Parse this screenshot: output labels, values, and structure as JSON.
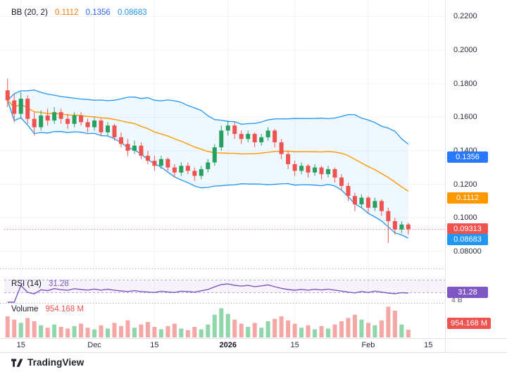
{
  "indicator_header": {
    "bb_label": "BB (20, 2)",
    "bb_mid": "0.1112",
    "bb_upper": "0.1356",
    "bb_lower": "0.08683"
  },
  "price_axis": {
    "labels": [
      "0.2200",
      "0.2000",
      "0.1800",
      "0.1600",
      "0.1400",
      "0.1200",
      "0.1000",
      "0.08000"
    ],
    "values": [
      0.22,
      0.2,
      0.18,
      0.16,
      0.14,
      0.12,
      0.1,
      0.08
    ]
  },
  "price_badges": [
    {
      "label": "0.1356",
      "value": 0.1356,
      "color": "#2979ff"
    },
    {
      "label": "0.1112",
      "value": 0.1112,
      "color": "#ff9800"
    },
    {
      "label": "0.09313",
      "value": 0.09313,
      "color": "#ef5350"
    },
    {
      "label": "0.08683",
      "value": 0.08683,
      "color": "#2196f3"
    }
  ],
  "rsi": {
    "label": "RSI (14)",
    "value_label": "31.28",
    "badge": "31.28",
    "badge_color": "#7e57c2",
    "last_value": 31.28
  },
  "volume": {
    "label": "Volume",
    "value_label": "954.168 M",
    "badge": "954.168 M",
    "badge_color": "#ef5350",
    "axis_top_label": "4 B"
  },
  "time_axis": {
    "ticks": [
      {
        "label": "15",
        "index": 2
      },
      {
        "label": "Dec",
        "index": 13
      },
      {
        "label": "15",
        "index": 22
      },
      {
        "label": "2026",
        "index": 33,
        "bold": true
      },
      {
        "label": "15",
        "index": 43
      },
      {
        "label": "Feb",
        "index": 54
      },
      {
        "label": "15",
        "index": 63
      }
    ]
  },
  "footer": {
    "brand": "TradingView"
  },
  "chart_data": {
    "type": "candlestick",
    "indicators_shown": [
      "BB (20, 2)",
      "RSI (14)",
      "Volume"
    ],
    "ylim": [
      0.0715,
      0.2265
    ],
    "slots": 66,
    "bb_period": 20,
    "bb_stdev": 2,
    "rsi_period": 14,
    "rsi_levels": [
      70,
      30
    ],
    "rsi_range": [
      0,
      100
    ],
    "last_price": 0.09313,
    "last_price_color": "#ef5350",
    "volume_axis_max": 4,
    "up_color": "#26a05e",
    "down_color": "#ef5350",
    "vol_up_color": "#8fd6ab",
    "vol_down_color": "#f6a6a4",
    "bb_band_color": "#2196f3",
    "bb_mid_color": "#ff9800",
    "bb_fill_opacity": 0.07,
    "rsi_color": "#7e57c2",
    "candles": [
      [
        0.176,
        0.183,
        0.166,
        0.17
      ],
      [
        0.17,
        0.174,
        0.157,
        0.162
      ],
      [
        0.162,
        0.175,
        0.159,
        0.171
      ],
      [
        0.171,
        0.173,
        0.156,
        0.159
      ],
      [
        0.159,
        0.163,
        0.149,
        0.154
      ],
      [
        0.154,
        0.164,
        0.152,
        0.161
      ],
      [
        0.161,
        0.165,
        0.155,
        0.158
      ],
      [
        0.158,
        0.166,
        0.156,
        0.163
      ],
      [
        0.163,
        0.165,
        0.156,
        0.159
      ],
      [
        0.159,
        0.162,
        0.153,
        0.156
      ],
      [
        0.156,
        0.163,
        0.154,
        0.161
      ],
      [
        0.161,
        0.163,
        0.155,
        0.157
      ],
      [
        0.157,
        0.159,
        0.151,
        0.154
      ],
      [
        0.154,
        0.16,
        0.152,
        0.158
      ],
      [
        0.158,
        0.159,
        0.149,
        0.151
      ],
      [
        0.151,
        0.157,
        0.149,
        0.155
      ],
      [
        0.155,
        0.156,
        0.146,
        0.148
      ],
      [
        0.148,
        0.151,
        0.142,
        0.144
      ],
      [
        0.144,
        0.147,
        0.137,
        0.14
      ],
      [
        0.14,
        0.146,
        0.138,
        0.143
      ],
      [
        0.143,
        0.145,
        0.135,
        0.137
      ],
      [
        0.137,
        0.14,
        0.132,
        0.134
      ],
      [
        0.134,
        0.137,
        0.128,
        0.131
      ],
      [
        0.131,
        0.137,
        0.129,
        0.135
      ],
      [
        0.135,
        0.136,
        0.128,
        0.13
      ],
      [
        0.13,
        0.132,
        0.124,
        0.127
      ],
      [
        0.127,
        0.133,
        0.125,
        0.131
      ],
      [
        0.131,
        0.133,
        0.126,
        0.128
      ],
      [
        0.128,
        0.13,
        0.122,
        0.125
      ],
      [
        0.125,
        0.131,
        0.123,
        0.129
      ],
      [
        0.129,
        0.135,
        0.127,
        0.133
      ],
      [
        0.133,
        0.144,
        0.131,
        0.142
      ],
      [
        0.142,
        0.155,
        0.14,
        0.152
      ],
      [
        0.152,
        0.158,
        0.149,
        0.155
      ],
      [
        0.155,
        0.157,
        0.147,
        0.15
      ],
      [
        0.15,
        0.152,
        0.144,
        0.147
      ],
      [
        0.147,
        0.152,
        0.145,
        0.15
      ],
      [
        0.15,
        0.151,
        0.142,
        0.145
      ],
      [
        0.145,
        0.15,
        0.143,
        0.148
      ],
      [
        0.148,
        0.154,
        0.146,
        0.152
      ],
      [
        0.152,
        0.153,
        0.142,
        0.145
      ],
      [
        0.145,
        0.147,
        0.135,
        0.138
      ],
      [
        0.138,
        0.14,
        0.129,
        0.132
      ],
      [
        0.132,
        0.134,
        0.125,
        0.128
      ],
      [
        0.128,
        0.133,
        0.126,
        0.131
      ],
      [
        0.131,
        0.132,
        0.124,
        0.127
      ],
      [
        0.127,
        0.132,
        0.125,
        0.13
      ],
      [
        0.13,
        0.131,
        0.123,
        0.126
      ],
      [
        0.126,
        0.131,
        0.124,
        0.129
      ],
      [
        0.129,
        0.13,
        0.121,
        0.124
      ],
      [
        0.124,
        0.126,
        0.116,
        0.119
      ],
      [
        0.119,
        0.121,
        0.11,
        0.113
      ],
      [
        0.113,
        0.115,
        0.104,
        0.108
      ],
      [
        0.108,
        0.114,
        0.106,
        0.112
      ],
      [
        0.112,
        0.113,
        0.103,
        0.106
      ],
      [
        0.106,
        0.112,
        0.104,
        0.11
      ],
      [
        0.11,
        0.111,
        0.101,
        0.104
      ],
      [
        0.104,
        0.106,
        0.085,
        0.098
      ],
      [
        0.098,
        0.1,
        0.09,
        0.093
      ],
      [
        0.093,
        0.098,
        0.091,
        0.096
      ],
      [
        0.096,
        0.097,
        0.09,
        0.0931
      ]
    ],
    "volumes_billions": [
      2.6,
      2.2,
      1.8,
      2.4,
      2.0,
      1.5,
      1.2,
      1.6,
      1.3,
      1.1,
      1.4,
      1.7,
      1.2,
      1.0,
      1.5,
      1.1,
      1.8,
      1.4,
      2.1,
      1.2,
      1.6,
      1.9,
      1.3,
      1.0,
      1.4,
      1.7,
      1.1,
      0.9,
      1.3,
      1.0,
      1.6,
      2.8,
      3.6,
      2.9,
      2.2,
      1.7,
      1.3,
      1.8,
      1.2,
      2.0,
      2.3,
      2.6,
      2.1,
      1.7,
      1.2,
      1.5,
      1.0,
      1.4,
      1.1,
      1.6,
      2.0,
      2.4,
      2.8,
      2.2,
      1.8,
      1.5,
      2.1,
      3.8,
      3.3,
      1.6,
      0.954
    ]
  }
}
